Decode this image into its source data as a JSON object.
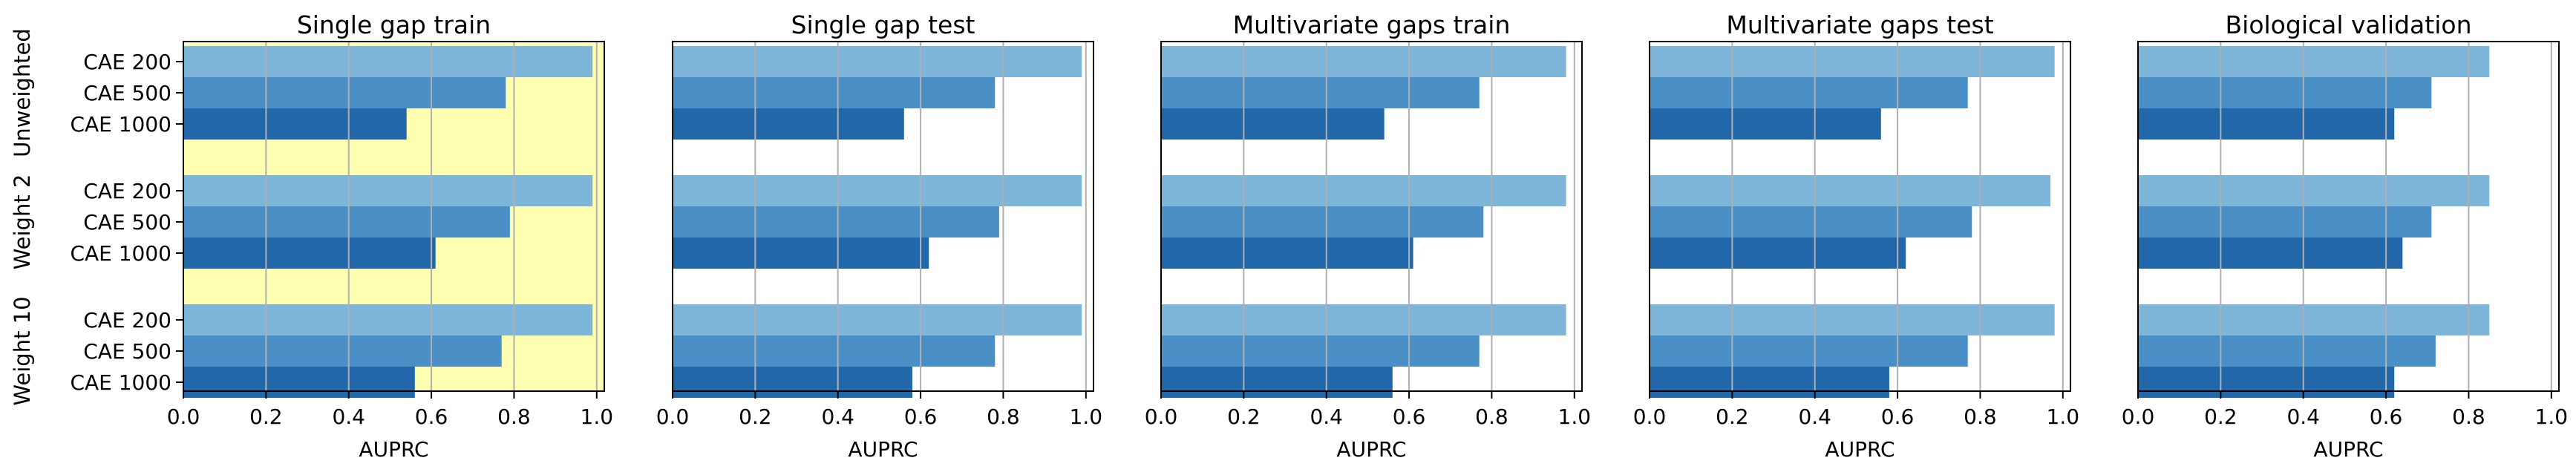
{
  "chart_data": {
    "type": "bar",
    "orientation": "horizontal",
    "xlabel": "AUPRC",
    "xlim": [
      0,
      1
    ],
    "xticks": [
      "0.0",
      "0.2",
      "0.4",
      "0.6",
      "0.8",
      "1.0"
    ],
    "grid": "x",
    "bar_labels": [
      "CAE 200",
      "CAE 500",
      "CAE 1000"
    ],
    "groups": [
      "Unweighted",
      "Weight 2",
      "Weight 10"
    ],
    "colors": [
      "#7eb6d9",
      "#4a90c6",
      "#2267a9"
    ],
    "highlight_color": "#ffffb2",
    "panels": [
      {
        "title": "Single gap train",
        "highlight": true,
        "values": [
          [
            0.99,
            0.78,
            0.54
          ],
          [
            0.99,
            0.79,
            0.61
          ],
          [
            0.99,
            0.77,
            0.56
          ]
        ]
      },
      {
        "title": "Single gap test",
        "highlight": false,
        "values": [
          [
            0.99,
            0.78,
            0.56
          ],
          [
            0.99,
            0.79,
            0.62
          ],
          [
            0.99,
            0.78,
            0.58
          ]
        ]
      },
      {
        "title": "Multivariate gaps train",
        "highlight": false,
        "values": [
          [
            0.98,
            0.77,
            0.54
          ],
          [
            0.98,
            0.78,
            0.61
          ],
          [
            0.98,
            0.77,
            0.56
          ]
        ]
      },
      {
        "title": "Multivariate gaps test",
        "highlight": false,
        "values": [
          [
            0.98,
            0.77,
            0.56
          ],
          [
            0.97,
            0.78,
            0.62
          ],
          [
            0.98,
            0.77,
            0.58
          ]
        ]
      },
      {
        "title": "Biological validation",
        "highlight": false,
        "values": [
          [
            0.85,
            0.71,
            0.62
          ],
          [
            0.85,
            0.71,
            0.64
          ],
          [
            0.85,
            0.72,
            0.62
          ]
        ]
      }
    ]
  }
}
